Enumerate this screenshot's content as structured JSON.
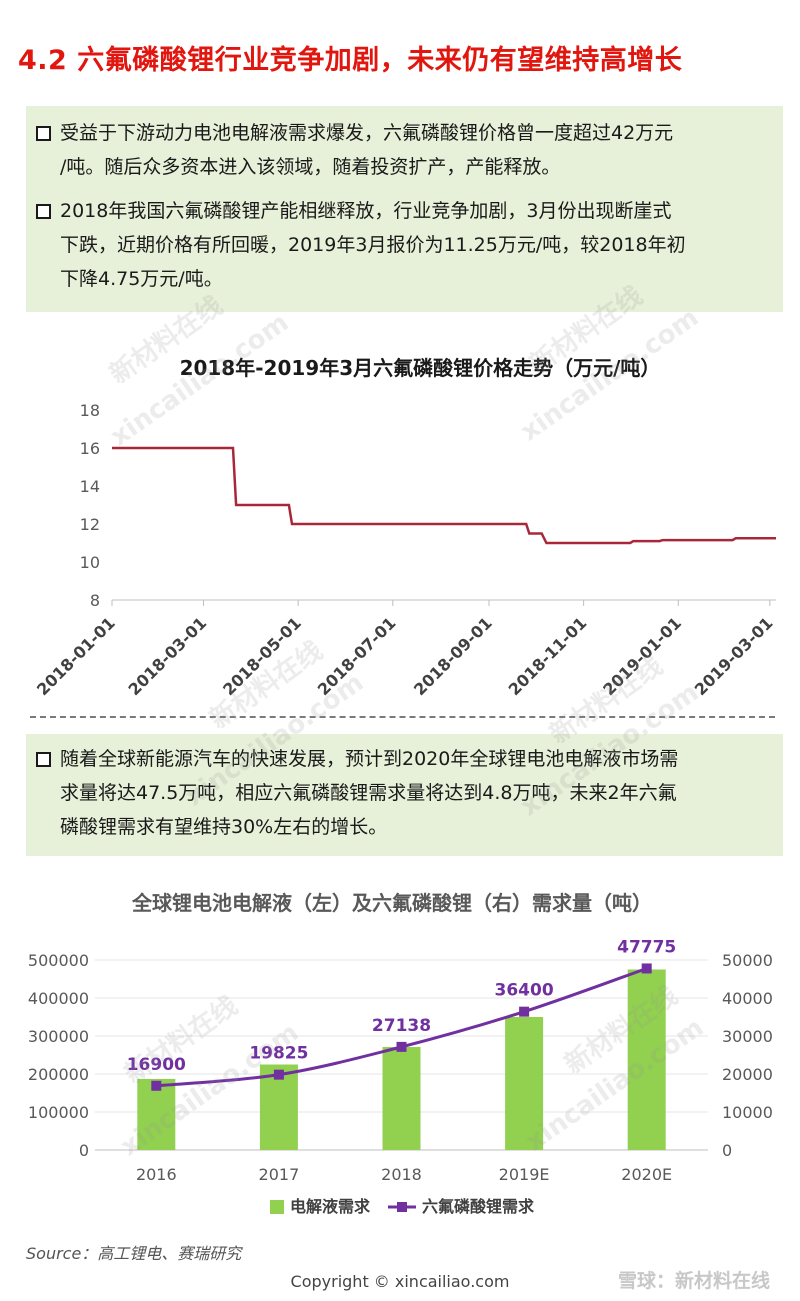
{
  "title": "4.2 六氟磷酸锂行业竞争加剧，未来仍有望维持高增长",
  "box1": {
    "bullets": [
      {
        "line1": "受益于下游动力电池电解液需求爆发，六氟磷酸锂价格曾一度超过42万元",
        "line2": "/吨。随后众多资本进入该领域，随着投资扩产，产能释放。",
        "line3": ""
      },
      {
        "line1": "2018年我国六氟磷酸锂产能相继释放，行业竞争加剧，3月份出现断崖式",
        "line2": "下跌，近期价格有所回暖，2019年3月报价为11.25万元/吨，较2018年初",
        "line3": "下降4.75万元/吨。"
      }
    ]
  },
  "box2": {
    "bullets": [
      {
        "line1": "随着全球新能源汽车的快速发展，预计到2020年全球锂电池电解液市场需",
        "line2": "求量将达47.5万吨，相应六氟磷酸锂需求量将达到4.8万吨，未来2年六氟",
        "line3": "磷酸锂需求有望维持30%左右的增长。"
      }
    ]
  },
  "chart_data": [
    {
      "type": "line",
      "title": "2018年-2019年3月六氟磷酸锂价格走势（万元/吨）",
      "xlabel": "",
      "ylabel": "",
      "ylim": [
        8,
        18
      ],
      "yticks": [
        8,
        10,
        12,
        14,
        16,
        18
      ],
      "xticks": [
        "2018-01-01",
        "2018-03-01",
        "2018-05-01",
        "2018-07-01",
        "2018-09-01",
        "2018-11-01",
        "2019-01-01",
        "2019-03-01"
      ],
      "x_range": [
        "2018-01-01",
        "2019-03-05"
      ],
      "color": "#a8283a",
      "grid": false,
      "points": [
        [
          "2018-01-01",
          16
        ],
        [
          "2018-03-20",
          16
        ],
        [
          "2018-03-22",
          13
        ],
        [
          "2018-04-25",
          13
        ],
        [
          "2018-04-27",
          12
        ],
        [
          "2018-09-25",
          12
        ],
        [
          "2018-09-27",
          11.5
        ],
        [
          "2018-10-05",
          11.5
        ],
        [
          "2018-10-08",
          11
        ],
        [
          "2018-12-01",
          11
        ],
        [
          "2018-12-03",
          11.1
        ],
        [
          "2018-12-20",
          11.1
        ],
        [
          "2018-12-22",
          11.15
        ],
        [
          "2019-02-05",
          11.15
        ],
        [
          "2019-02-07",
          11.25
        ],
        [
          "2019-03-05",
          11.25
        ]
      ]
    },
    {
      "type": "bar",
      "title": "全球锂电池电解液（左）及六氟磷酸锂（右）需求量（吨）",
      "categories": [
        "2016",
        "2017",
        "2018",
        "2019E",
        "2020E"
      ],
      "ylim_left": [
        0,
        500000
      ],
      "yticks_left": [
        0,
        100000,
        200000,
        300000,
        400000,
        500000
      ],
      "ylim_right": [
        0,
        50000
      ],
      "yticks_right": [
        0,
        10000,
        20000,
        30000,
        40000,
        50000
      ],
      "grid": true,
      "legend_position": "bottom",
      "series": [
        {
          "name": "电解液需求",
          "type": "bar",
          "axis": "left",
          "color": "#92d050",
          "values": [
            187000,
            225000,
            271000,
            350000,
            475000
          ]
        },
        {
          "name": "六氟磷酸锂需求",
          "type": "line",
          "axis": "right",
          "color": "#7030a0",
          "values": [
            16900,
            19825,
            27138,
            36400,
            47775
          ],
          "labels": [
            "16900",
            "19825",
            "27138",
            "36400",
            "47775"
          ]
        }
      ]
    }
  ],
  "source": "Source：高工锂电、赛瑞研究",
  "copyright": "Copyright © xincailiao.com",
  "watermark_cn": "新材料在线",
  "watermark_en": "xincailiao.com",
  "xueqiu_logo": "雪球：新材料在线"
}
